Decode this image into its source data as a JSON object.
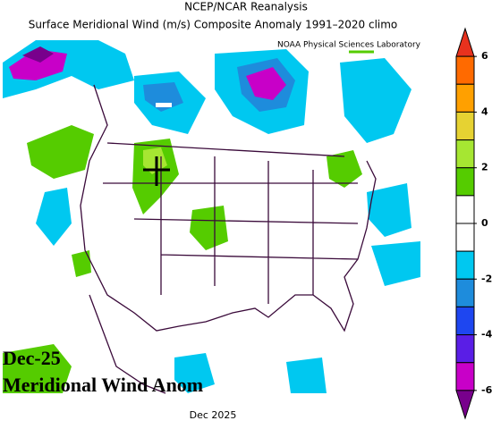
{
  "header": {
    "title": "NCEP/NCAR Reanalysis",
    "subtitle": "Surface Meridional Wind (m/s) Composite Anomaly 1991–2020 climo",
    "credit": "NOAA Physical Sciences Laboratory"
  },
  "overlay": {
    "line1": "Dec-25",
    "line2": "Meridional Wind Anom"
  },
  "footer": {
    "date": "Dec 2025"
  },
  "colorbar": {
    "lim": [
      -7,
      7
    ],
    "ticks": [
      6,
      4,
      2,
      0,
      -2,
      -4,
      -6
    ],
    "colors": [
      "#e8321e",
      "#ff6a00",
      "#ffa000",
      "#e6d232",
      "#a6e632",
      "#55cc00",
      "#ffffff",
      "#ffffff",
      "#00c8f0",
      "#1e8cdc",
      "#1e46f0",
      "#5a1ee6",
      "#c800c8",
      "#78008c"
    ]
  }
}
